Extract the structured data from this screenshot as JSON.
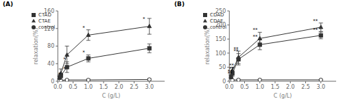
{
  "chart_data": [
    {
      "type": "line",
      "title": "(A)",
      "xlabel": "C (g/L)",
      "ylabel": "relaxation(%)",
      "xlim": [
        0,
        3.5
      ],
      "ylim": [
        0,
        160
      ],
      "yticks": [
        0,
        40,
        80,
        120,
        160
      ],
      "xticks": [
        {
          "value": 0,
          "label": "0.0"
        },
        0.5,
        {
          "value": 1.0,
          "label": "1.0"
        },
        1.5,
        {
          "value": 2.0,
          "label": "2.0"
        },
        2.5,
        {
          "value": 3.0,
          "label": "3.0"
        }
      ],
      "x": [
        0.05,
        0.1,
        0.3,
        1.0,
        3.0
      ],
      "series": [
        {
          "name": "control",
          "color": "#333333",
          "marker": "circle",
          "values": [
            2,
            2,
            3,
            3,
            4
          ],
          "errors": [
            1,
            1,
            1,
            2,
            2
          ]
        },
        {
          "name": "CTAD",
          "color": "#333333",
          "marker": "square",
          "values": [
            8,
            13,
            32,
            52,
            75
          ],
          "errors": [
            3,
            5,
            12,
            8,
            10
          ]
        },
        {
          "name": "CTAE",
          "color": "#333333",
          "marker": "triangle",
          "values": [
            10,
            18,
            60,
            105,
            125
          ],
          "errors": [
            4,
            10,
            20,
            12,
            18
          ]
        }
      ],
      "annotations": [
        {
          "x": 0.06,
          "y": 13,
          "text": "*"
        },
        {
          "x": 0.22,
          "y": 25,
          "text": "*"
        },
        {
          "x": 0.22,
          "y": 46,
          "text": "*"
        },
        {
          "x": 0.85,
          "y": 62,
          "text": "*"
        },
        {
          "x": 0.85,
          "y": 118,
          "text": "*"
        },
        {
          "x": 2.82,
          "y": 138,
          "text": "*"
        }
      ],
      "legend": "upper left"
    },
    {
      "type": "line",
      "title": "(B)",
      "xlabel": "C (g/L)",
      "ylabel": "relaxation(%)",
      "xlim": [
        0,
        3.5
      ],
      "ylim": [
        0,
        250
      ],
      "yticks": [
        0,
        50,
        100,
        150,
        200,
        250
      ],
      "xticks": [
        {
          "value": 0,
          "label": "0.0"
        },
        0.5,
        {
          "value": 1.0,
          "label": "1.0"
        },
        1.5,
        {
          "value": 2.0,
          "label": "2.0"
        },
        2.5,
        {
          "value": 3.0,
          "label": "3.0"
        }
      ],
      "x": [
        0.05,
        0.1,
        0.3,
        1.0,
        3.0
      ],
      "series": [
        {
          "name": "control",
          "color": "#333333",
          "marker": "circle",
          "values": [
            3,
            4,
            5,
            5,
            5
          ],
          "errors": [
            1,
            1,
            2,
            2,
            2
          ]
        },
        {
          "name": "CDAD",
          "color": "#333333",
          "marker": "square",
          "values": [
            15,
            28,
            78,
            130,
            163
          ],
          "errors": [
            4,
            10,
            20,
            18,
            12
          ]
        },
        {
          "name": "CDAE",
          "color": "#333333",
          "marker": "triangle",
          "values": [
            18,
            38,
            85,
            152,
            192
          ],
          "errors": [
            5,
            12,
            22,
            22,
            15
          ]
        }
      ],
      "annotations": [
        {
          "x": 0.02,
          "y": 22,
          "text": "**"
        },
        {
          "x": 0.02,
          "y": 30,
          "text": "**"
        },
        {
          "x": 0.07,
          "y": 38,
          "text": "**"
        },
        {
          "x": 0.07,
          "y": 52,
          "text": "**"
        },
        {
          "x": 0.22,
          "y": 102,
          "text": "**"
        },
        {
          "x": 0.22,
          "y": 110,
          "text": "**"
        },
        {
          "x": 0.85,
          "y": 152,
          "text": "**"
        },
        {
          "x": 0.85,
          "y": 178,
          "text": "**"
        },
        {
          "x": 2.82,
          "y": 178,
          "text": "**"
        },
        {
          "x": 2.82,
          "y": 208,
          "text": "**"
        }
      ],
      "legend": "upper left"
    }
  ]
}
